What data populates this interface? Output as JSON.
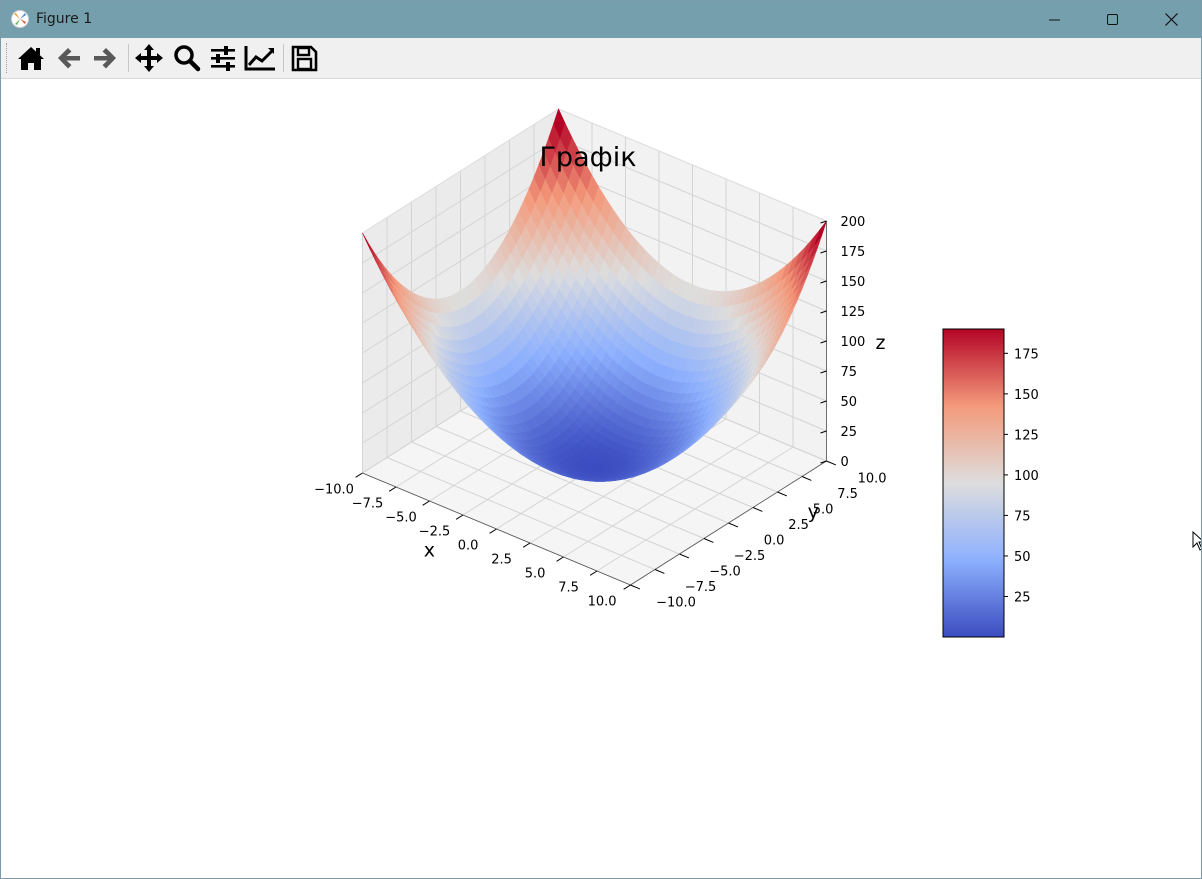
{
  "window": {
    "title": "Figure 1"
  },
  "toolbar": {
    "buttons": [
      {
        "name": "home",
        "icon": "home-icon"
      },
      {
        "name": "back",
        "icon": "arrow-left-icon"
      },
      {
        "name": "forward",
        "icon": "arrow-right-icon"
      },
      {
        "name": "pan",
        "icon": "move-icon"
      },
      {
        "name": "zoom",
        "icon": "magnifier-icon"
      },
      {
        "name": "configure-subplots",
        "icon": "sliders-icon"
      },
      {
        "name": "edit-axis",
        "icon": "line-chart-icon"
      },
      {
        "name": "save",
        "icon": "floppy-disk-icon"
      }
    ]
  },
  "chart_data": {
    "type": "surface3d",
    "title": "Графік",
    "function": "z = x^2 + y^2",
    "xlabel": "x",
    "ylabel": "y",
    "zlabel": "z",
    "xlim": [
      -10,
      10
    ],
    "ylim": [
      -10,
      10
    ],
    "zlim": [
      0,
      200
    ],
    "xticks": [
      "−10.0",
      "−7.5",
      "−5.0",
      "−2.5",
      "0.0",
      "2.5",
      "5.0",
      "7.5",
      "10.0"
    ],
    "yticks": [
      "−10.0",
      "−7.5",
      "−5.0",
      "−2.5",
      "0.0",
      "2.5",
      "5.0",
      "7.5",
      "10.0"
    ],
    "zticks": [
      "0",
      "25",
      "50",
      "75",
      "100",
      "125",
      "150",
      "175",
      "200"
    ],
    "grid": true,
    "colormap": "coolwarm",
    "colorbar": {
      "range": [
        0,
        190
      ],
      "ticks": [
        "25",
        "50",
        "75",
        "100",
        "125",
        "150",
        "175"
      ],
      "colors": [
        "#3b4cc0",
        "#8db0fe",
        "#dddddd",
        "#f49a7b",
        "#b40426"
      ]
    }
  }
}
